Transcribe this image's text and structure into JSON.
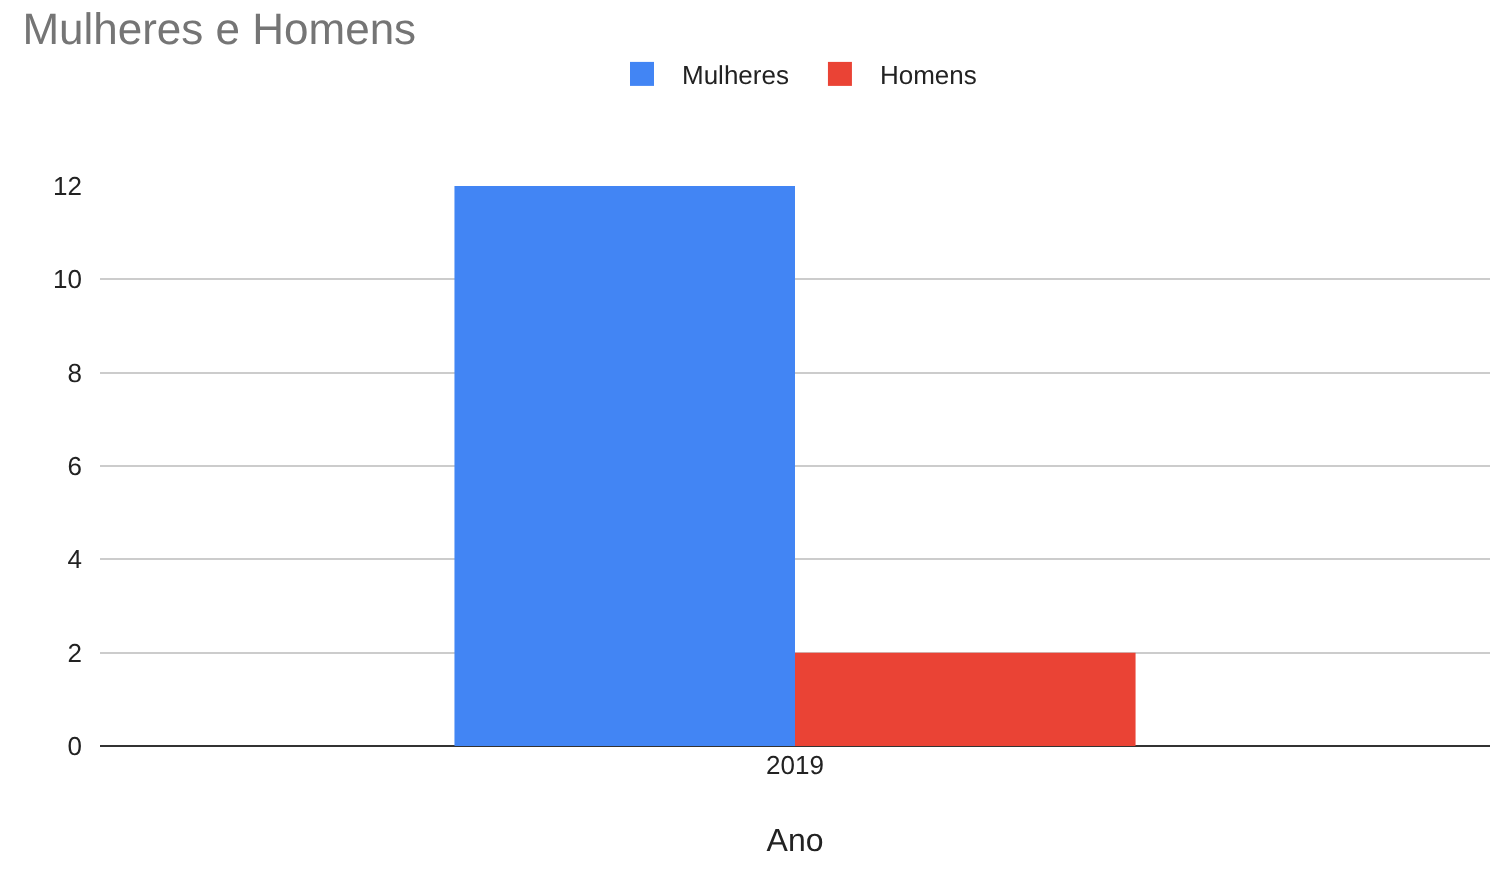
{
  "chart_data": {
    "type": "bar",
    "title": "Mulheres e Homens",
    "xlabel": "Ano",
    "categories": [
      "2019"
    ],
    "series": [
      {
        "name": "Mulheres",
        "color": "#4285f4",
        "values": [
          12
        ]
      },
      {
        "name": "Homens",
        "color": "#ea4335",
        "values": [
          2
        ]
      }
    ],
    "ylim": [
      0,
      12
    ],
    "yticks": [
      0,
      2,
      4,
      6,
      8,
      10,
      12
    ],
    "grid": "y",
    "legend": "top"
  }
}
